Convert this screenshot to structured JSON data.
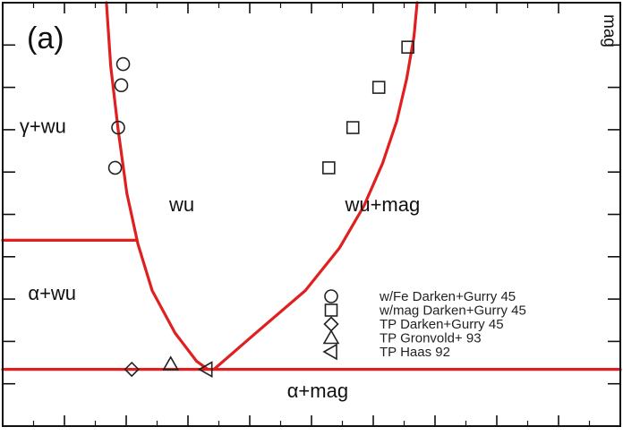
{
  "chart_data": {
    "type": "scatter",
    "title": "",
    "xlabel": "",
    "ylabel": "",
    "panel_label": "(a)",
    "edge_label": "mag",
    "xlim": [
      0,
      100
    ],
    "ylim": [
      0,
      100
    ],
    "grid": false,
    "legend_position": "center-right",
    "colors": {
      "boundary": "#e02020",
      "axis": "#111111",
      "marker": "#222222"
    },
    "regions": [
      {
        "label": "γ+wu",
        "x": 6.5,
        "y": 70.5
      },
      {
        "label": "wu",
        "x": 29,
        "y": 52
      },
      {
        "label": "wu+mag",
        "x": 61.5,
        "y": 52
      },
      {
        "label": "α+wu",
        "x": 8,
        "y": 31
      },
      {
        "label": "α+mag",
        "x": 51,
        "y": 8
      }
    ],
    "boundaries": [
      {
        "name": "left phase boundary",
        "points": [
          [
            16.8,
            100
          ],
          [
            17.5,
            85
          ],
          [
            18.7,
            70
          ],
          [
            20.1,
            55
          ],
          [
            21.9,
            43
          ],
          [
            24.2,
            32
          ],
          [
            27.9,
            22
          ],
          [
            31.4,
            15.3
          ],
          [
            33.2,
            13.4
          ]
        ]
      },
      {
        "name": "right phase boundary",
        "points": [
          [
            34.2,
            13.4
          ],
          [
            41,
            22
          ],
          [
            49,
            32
          ],
          [
            54.5,
            42
          ],
          [
            58.5,
            52
          ],
          [
            61.5,
            62
          ],
          [
            63.8,
            72
          ],
          [
            65.4,
            82
          ],
          [
            66.6,
            92
          ],
          [
            67.1,
            100
          ]
        ]
      },
      {
        "name": "alpha+wu / gamma+wu line",
        "points": [
          [
            0,
            43.9
          ],
          [
            21.5,
            43.9
          ]
        ]
      },
      {
        "name": "eutectoid line",
        "points": [
          [
            0,
            13.4
          ],
          [
            100,
            13.4
          ]
        ]
      }
    ],
    "series": [
      {
        "name": "w/Fe Darken+Gurry 45",
        "marker": "circle",
        "points": [
          [
            19.5,
            85.5
          ],
          [
            19.2,
            80.5
          ],
          [
            18.7,
            70.5
          ],
          [
            18.2,
            61
          ]
        ]
      },
      {
        "name": "w/mag Darken+Gurry 45",
        "marker": "square",
        "points": [
          [
            52.8,
            61
          ],
          [
            56.7,
            70.5
          ],
          [
            60.9,
            80
          ],
          [
            65.6,
            89.5
          ]
        ]
      },
      {
        "name": "TP Darken+Gurry 45",
        "marker": "diamond",
        "points": [
          [
            20.9,
            13.4
          ]
        ]
      },
      {
        "name": "TP Gronvold+ 93",
        "marker": "triangle-up",
        "points": [
          [
            27.2,
            14.6
          ]
        ]
      },
      {
        "name": "TP Haas 92",
        "marker": "triangle-left",
        "points": [
          [
            33,
            13.4
          ]
        ]
      }
    ]
  }
}
